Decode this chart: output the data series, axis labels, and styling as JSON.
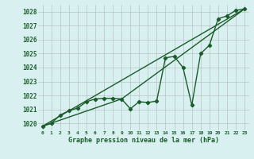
{
  "xlabel": "Graphe pression niveau de la mer (hPa)",
  "bg_color": "#d8f0f0",
  "grid_color": "#aaaaaa",
  "line_color": "#1a5c2a",
  "xlim": [
    -0.5,
    23.5
  ],
  "ylim": [
    1019.5,
    1028.5
  ],
  "yticks": [
    1020,
    1021,
    1022,
    1023,
    1024,
    1025,
    1026,
    1027,
    1028
  ],
  "xticks": [
    0,
    1,
    2,
    3,
    4,
    5,
    6,
    7,
    8,
    9,
    10,
    11,
    12,
    13,
    14,
    15,
    16,
    17,
    18,
    19,
    20,
    21,
    22,
    23
  ],
  "series1_x": [
    0,
    1,
    2,
    3,
    4,
    5,
    6,
    7,
    8,
    9,
    10,
    11,
    12,
    13,
    14,
    15,
    16,
    17,
    18,
    19,
    20,
    21,
    22,
    23
  ],
  "series1_y": [
    1019.8,
    1020.0,
    1020.6,
    1020.9,
    1021.1,
    1021.55,
    1021.75,
    1021.8,
    1021.8,
    1021.75,
    1021.05,
    1021.55,
    1021.5,
    1021.6,
    1024.7,
    1024.8,
    1024.0,
    1021.3,
    1025.0,
    1025.6,
    1027.5,
    1027.7,
    1028.1,
    1028.2
  ],
  "series2_x": [
    0,
    23
  ],
  "series2_y": [
    1019.8,
    1028.2
  ],
  "series3_x": [
    0,
    9,
    23
  ],
  "series3_y": [
    1019.8,
    1021.75,
    1028.2
  ],
  "marker_style": "D",
  "marker_size": 2.2,
  "line_width": 1.0
}
